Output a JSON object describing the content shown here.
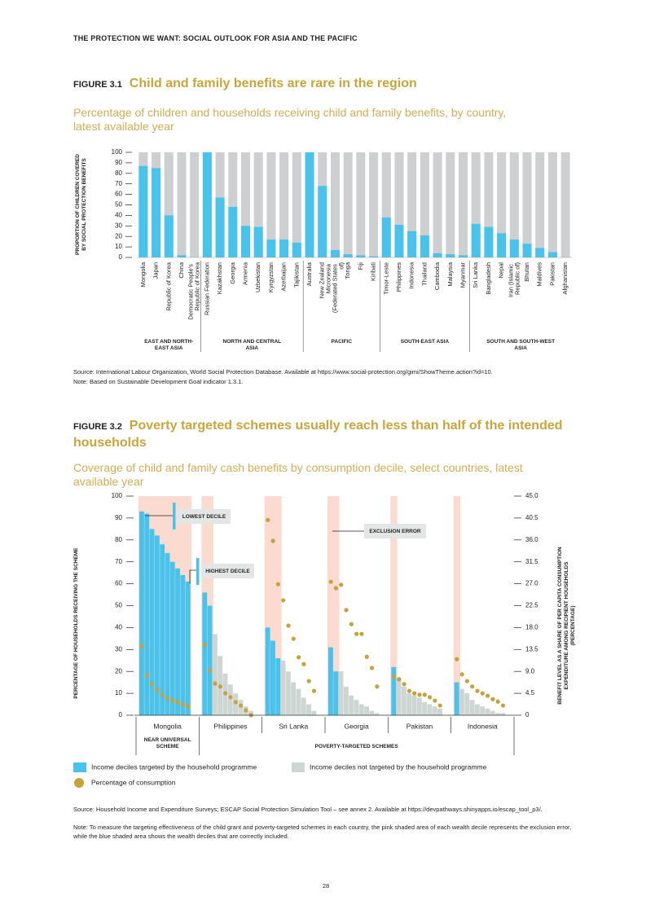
{
  "header": "THE PROTECTION WE WANT: SOCIAL OUTLOOK FOR ASIA AND THE PACIFIC",
  "page_number": 28,
  "chart_data": [
    {
      "type": "bar",
      "label": "FIGURE 3.1",
      "title": "Child and family benefits are rare in the region",
      "subtitle": "Percentage of children and households receiving child and family benefits, by country, latest available year",
      "ylabel": "PROPORTION OF CHILDREN COVERED BY SOCIAL PROTECTION BENEFITS",
      "color": "#49c3ec",
      "track_color": "#cdcfd1",
      "ylim": [
        0,
        100
      ],
      "yticks": [
        0,
        10,
        20,
        30,
        40,
        50,
        60,
        70,
        80,
        90,
        100
      ],
      "groups": [
        {
          "label": "EAST AND NORTH-EAST ASIA",
          "categories": [
            "Mongolia",
            "Japan",
            "Republic of Korea",
            "China",
            "Democratic People's Republic of Korea"
          ],
          "values": [
            87,
            85,
            40,
            2,
            0
          ]
        },
        {
          "label": "NORTH AND CENTRAL ASIA",
          "categories": [
            "Russian Federation",
            "Kazakhstan",
            "Georgia",
            "Armenia",
            "Uzbekistan",
            "Kyrgyzstan",
            "Azerbaijan",
            "Tajikistan"
          ],
          "values": [
            100,
            57,
            48,
            30,
            29,
            17,
            17,
            14
          ]
        },
        {
          "label": "PACIFIC",
          "categories": [
            "Australia",
            "New Zealand",
            "Micronesia (Federated States of)",
            "Tonga",
            "Fiji",
            "Kiribati"
          ],
          "values": [
            100,
            68,
            7,
            3,
            2,
            1
          ]
        },
        {
          "label": "SOUTH-EAST ASIA",
          "categories": [
            "Timor-Leste",
            "Philippines",
            "Indonesia",
            "Thailand",
            "Cambodia",
            "Malaysia",
            "Myanmar"
          ],
          "values": [
            38,
            31,
            25,
            21,
            4,
            3,
            2
          ]
        },
        {
          "label": "SOUTH AND SOUTH-WEST ASIA",
          "categories": [
            "Sri Lanka",
            "Bangladesh",
            "Nepal",
            "Iran (Islamic Republic of)",
            "Bhutan",
            "Maldives",
            "Pakistan",
            "Afghanistan"
          ],
          "values": [
            32,
            29,
            23,
            17,
            13,
            9,
            5,
            0
          ]
        }
      ],
      "source": "Source: International Labour Organization, World Social Protection Database. Available at https://www.social-protection.org/gimi/ShowTheme.action?id=10.",
      "note": "Note: Based on Sustainable Development Goal indicator 1.3.1."
    },
    {
      "type": "decile_bar",
      "label": "FIGURE 3.2",
      "title": "Poverty targeted schemes usually reach less than half of the intended households",
      "subtitle": "Coverage of child and family cash benefits by consumption decile, select countries, latest available year",
      "ylabel": "PERCENTAGE OF HOUSEHOLDS RECEIVING THE SCHEME",
      "y2label": "BENEFIT LEVEL AS A SHARE OF PER CAPITA CONSUMPTION EXPENDITURE AMONG RECIPIENT HOUSEHOLDS (PERCENTAGE)",
      "ylim": [
        0,
        100
      ],
      "yticks": [
        0,
        10,
        20,
        30,
        40,
        50,
        60,
        70,
        80,
        90,
        100
      ],
      "y2lim": [
        0,
        45
      ],
      "y2ticks": [
        0,
        4.5,
        {
          "value": 9,
          "label": "9.0"
        },
        13.5,
        {
          "value": 18,
          "label": "18.0"
        },
        22.5,
        {
          "value": 27,
          "label": "27.0"
        },
        31.5,
        {
          "value": 36,
          "label": "36.0"
        },
        40.5,
        {
          "value": 45,
          "label": "45.0"
        }
      ],
      "shade_color": "#fbdad0",
      "series": [
        {
          "name": "Income deciles targeted by the household programme",
          "color": "#49c3ec"
        },
        {
          "name": "Income deciles not targeted by the household programme",
          "color": "#cdd6d2"
        },
        {
          "name": "Percentage of consumption",
          "color": "#c6a23c",
          "axis": "y2"
        }
      ],
      "groups": [
        {
          "name": "Mongolia",
          "targeted": [
            93,
            92,
            85,
            82,
            78,
            74,
            70,
            67,
            64,
            61
          ],
          "not_targeted": [
            null,
            null,
            null,
            null,
            null,
            null,
            null,
            null,
            null,
            null
          ],
          "consumption": [
            14.2,
            8.2,
            6.4,
            5.2,
            4.2,
            3.5,
            3.0,
            2.7,
            2.2,
            1.8
          ]
        },
        {
          "name": "Philippines",
          "targeted": [
            56,
            50,
            null,
            null,
            null,
            null,
            null,
            null,
            null,
            null
          ],
          "not_targeted": [
            null,
            null,
            37,
            27,
            19,
            14,
            10,
            7,
            4,
            2
          ],
          "consumption": [
            14.4,
            9.2,
            6.5,
            5.9,
            4.5,
            3.7,
            2.7,
            2.0,
            1.0,
            0
          ]
        },
        {
          "name": "Sri Lanka",
          "targeted": [
            40,
            34,
            26,
            null,
            null,
            null,
            null,
            null,
            null,
            null
          ],
          "not_targeted": [
            null,
            null,
            null,
            25,
            20,
            15,
            12,
            8,
            5,
            2
          ],
          "consumption": [
            40.1,
            35.8,
            26.9,
            23.6,
            18.4,
            15.7,
            11.9,
            10.5,
            7.0,
            5.0
          ]
        },
        {
          "name": "Georgia",
          "targeted": [
            31,
            20,
            null,
            null,
            null,
            null,
            null,
            null,
            null,
            null
          ],
          "not_targeted": [
            null,
            null,
            20,
            13,
            9,
            7,
            5,
            4,
            2,
            1
          ],
          "consumption": [
            27.4,
            26.1,
            26.8,
            21.6,
            18.7,
            16.7,
            16.7,
            12.0,
            9.7,
            5.9
          ]
        },
        {
          "name": "Pakistan",
          "targeted": [
            22,
            null,
            null,
            null,
            null,
            null,
            null,
            null,
            null,
            null
          ],
          "not_targeted": [
            null,
            17,
            13,
            10,
            9,
            8,
            6,
            5,
            4,
            3
          ],
          "consumption": [
            7.9,
            7.4,
            6.4,
            5.0,
            4.5,
            4.2,
            4.2,
            3.7,
            3.0,
            2.0
          ]
        },
        {
          "name": "Indonesia",
          "targeted": [
            15,
            null,
            null,
            null,
            null,
            null,
            null,
            null,
            null,
            null
          ],
          "not_targeted": [
            null,
            12,
            10,
            7,
            5,
            4,
            3,
            2,
            1,
            1
          ],
          "consumption": [
            11.5,
            8.4,
            7.0,
            5.9,
            5.0,
            4.5,
            4.0,
            3.3,
            2.8,
            2.0
          ]
        }
      ],
      "annotations": [
        "LOWEST DECILE",
        "HIGHEST DECILE",
        "EXCLUSION ERROR"
      ],
      "scheme_labels": [
        "NEAR UNIVERSAL SCHEME",
        "POVERTY-TARGETED SCHEMES"
      ],
      "source": "Source: Household Income and Expenditure Surveys; ESCAP Social Protection Simulation Tool – see annex 2. Available at https://devpathways.shinyapps.io/escap_tool_p3/.",
      "note": "Note: To measure the targeting effectiveness of the child grant and poverty-targeted schemes in each country, the pink shaded area of each wealth decile represents the exclusion error, while the blue shaded area shows the wealth deciles that are correctly included."
    }
  ]
}
